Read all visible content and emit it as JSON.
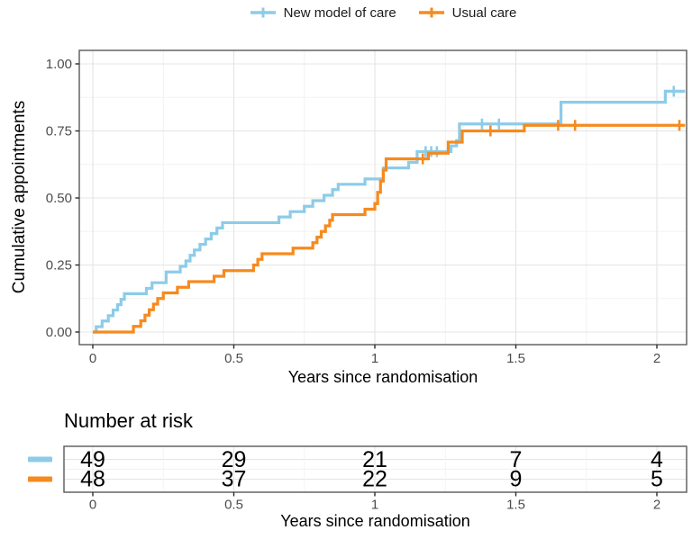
{
  "figure": {
    "legend": {
      "items": [
        {
          "label": "New model of care",
          "color": "#8CCCE8"
        },
        {
          "label": "Usual care",
          "color": "#F68A1E"
        }
      ]
    },
    "main_plot": {
      "ylabel": "Cumulative appointments",
      "xlabel": "Years since randomisation",
      "ytick_labels": [
        "0.00",
        "0.25",
        "0.50",
        "0.75",
        "1.00"
      ],
      "xtick_labels": [
        "0",
        "0.5",
        "1",
        "1.5",
        "2"
      ]
    },
    "risk_table": {
      "title": "Number at risk",
      "xlabel": "Years since randomisation",
      "xtick_labels": [
        "0",
        "0.5",
        "1",
        "1.5",
        "2"
      ]
    }
  },
  "chart_data": {
    "type": "line",
    "subtype": "kaplan-meier-cumulative-incidence-step",
    "title": "",
    "xlabel": "Years since randomisation",
    "ylabel": "Cumulative appointments",
    "xlim": [
      -0.05,
      2.11
    ],
    "ylim": [
      -0.05,
      1.05
    ],
    "xticks": [
      0,
      0.5,
      1,
      1.5,
      2
    ],
    "xticks_minor": [
      0.25,
      0.75,
      1.25,
      1.75
    ],
    "yticks": [
      0,
      0.25,
      0.5,
      0.75,
      1.0
    ],
    "yticks_minor": [
      0.125,
      0.375,
      0.625,
      0.875
    ],
    "grid": true,
    "legend_position": "top",
    "series": [
      {
        "name": "New model of care",
        "color": "#8CCCE8",
        "points": [
          [
            0,
            0
          ],
          [
            0.012,
            0.02
          ],
          [
            0.033,
            0.041
          ],
          [
            0.055,
            0.061
          ],
          [
            0.072,
            0.082
          ],
          [
            0.088,
            0.102
          ],
          [
            0.1,
            0.122
          ],
          [
            0.112,
            0.143
          ],
          [
            0.19,
            0.163
          ],
          [
            0.21,
            0.184
          ],
          [
            0.26,
            0.224
          ],
          [
            0.31,
            0.245
          ],
          [
            0.33,
            0.265
          ],
          [
            0.345,
            0.286
          ],
          [
            0.36,
            0.306
          ],
          [
            0.38,
            0.327
          ],
          [
            0.4,
            0.347
          ],
          [
            0.42,
            0.367
          ],
          [
            0.44,
            0.388
          ],
          [
            0.46,
            0.408
          ],
          [
            0.66,
            0.429
          ],
          [
            0.7,
            0.449
          ],
          [
            0.75,
            0.469
          ],
          [
            0.78,
            0.49
          ],
          [
            0.82,
            0.51
          ],
          [
            0.85,
            0.531
          ],
          [
            0.87,
            0.551
          ],
          [
            0.965,
            0.571
          ],
          [
            1.03,
            0.612
          ],
          [
            1.12,
            0.633
          ],
          [
            1.15,
            0.673
          ],
          [
            1.27,
            0.694
          ],
          [
            1.29,
            0.714
          ],
          [
            1.3,
            0.776
          ],
          [
            1.66,
            0.857
          ],
          [
            2.03,
            0.898
          ],
          [
            2.1,
            0.898
          ]
        ],
        "censor_marks": [
          [
            1.18,
            0.673
          ],
          [
            1.2,
            0.673
          ],
          [
            1.22,
            0.673
          ],
          [
            1.38,
            0.776
          ],
          [
            1.44,
            0.776
          ],
          [
            2.06,
            0.898
          ]
        ]
      },
      {
        "name": "Usual care",
        "color": "#F68A1E",
        "points": [
          [
            0,
            0
          ],
          [
            0.144,
            0.021
          ],
          [
            0.17,
            0.042
          ],
          [
            0.185,
            0.063
          ],
          [
            0.2,
            0.083
          ],
          [
            0.215,
            0.104
          ],
          [
            0.23,
            0.125
          ],
          [
            0.25,
            0.146
          ],
          [
            0.3,
            0.167
          ],
          [
            0.34,
            0.188
          ],
          [
            0.43,
            0.208
          ],
          [
            0.465,
            0.229
          ],
          [
            0.57,
            0.25
          ],
          [
            0.585,
            0.271
          ],
          [
            0.6,
            0.292
          ],
          [
            0.71,
            0.313
          ],
          [
            0.78,
            0.333
          ],
          [
            0.795,
            0.354
          ],
          [
            0.81,
            0.375
          ],
          [
            0.825,
            0.396
          ],
          [
            0.84,
            0.417
          ],
          [
            0.85,
            0.438
          ],
          [
            0.965,
            0.458
          ],
          [
            1.0,
            0.479
          ],
          [
            1.01,
            0.521
          ],
          [
            1.02,
            0.563
          ],
          [
            1.03,
            0.604
          ],
          [
            1.04,
            0.646
          ],
          [
            1.19,
            0.667
          ],
          [
            1.26,
            0.708
          ],
          [
            1.31,
            0.75
          ],
          [
            1.53,
            0.771
          ],
          [
            2.1,
            0.771
          ]
        ],
        "censor_marks": [
          [
            1.17,
            0.646
          ],
          [
            1.41,
            0.75
          ],
          [
            1.65,
            0.771
          ],
          [
            1.71,
            0.771
          ],
          [
            2.08,
            0.771
          ]
        ]
      }
    ],
    "number_at_risk": {
      "title": "Number at risk",
      "times": [
        0,
        0.5,
        1,
        1.5,
        2
      ],
      "rows": [
        {
          "name": "New model of care",
          "color": "#8CCCE8",
          "counts": [
            49,
            29,
            21,
            7,
            4
          ]
        },
        {
          "name": "Usual care",
          "color": "#F68A1E",
          "counts": [
            48,
            37,
            22,
            9,
            5
          ]
        }
      ]
    }
  }
}
